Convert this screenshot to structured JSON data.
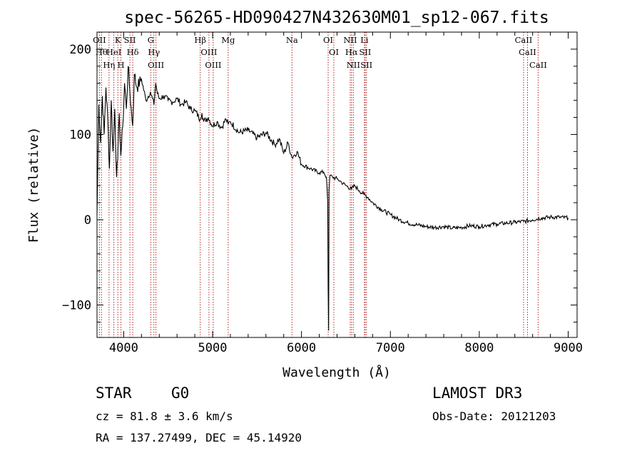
{
  "chart_data": {
    "type": "line",
    "title": "spec-56265-HD090427N432630M01_sp12-067.fits",
    "xlabel": "Wavelength (Å)",
    "ylabel": "Flux (relative)",
    "xlim": [
      3700,
      9100
    ],
    "ylim": [
      -138,
      220
    ],
    "xticks": [
      4000,
      5000,
      6000,
      7000,
      8000,
      9000
    ],
    "yticks": [
      -100,
      0,
      100,
      200
    ],
    "line_color": "#000000",
    "marker_color": "#b22222",
    "series": [
      {
        "name": "flux",
        "x": [
          3700,
          3720,
          3740,
          3760,
          3780,
          3800,
          3820,
          3840,
          3860,
          3880,
          3900,
          3920,
          3933,
          3950,
          3968,
          3990,
          4010,
          4030,
          4050,
          4070,
          4101,
          4120,
          4150,
          4200,
          4250,
          4300,
          4340,
          4360,
          4380,
          4400,
          4450,
          4500,
          4550,
          4600,
          4650,
          4700,
          4750,
          4800,
          4861,
          4880,
          4900,
          4950,
          5000,
          5050,
          5100,
          5150,
          5175,
          5200,
          5300,
          5400,
          5500,
          5600,
          5700,
          5750,
          5800,
          5850,
          5893,
          5950,
          6000,
          6100,
          6200,
          6250,
          6280,
          6295,
          6300,
          6305,
          6310,
          6320,
          6350,
          6400,
          6450,
          6500,
          6563,
          6600,
          6650,
          6700,
          6750,
          6800,
          6900,
          7000,
          7100,
          7200,
          7300,
          7400,
          7500,
          7600,
          7700,
          7800,
          7900,
          8000,
          8100,
          8200,
          8300,
          8400,
          8500,
          8600,
          8700,
          8800,
          8900,
          9000
        ],
        "y": [
          5,
          135,
          90,
          145,
          100,
          155,
          120,
          60,
          140,
          80,
          130,
          50,
          70,
          125,
          75,
          110,
          160,
          130,
          180,
          150,
          110,
          170,
          155,
          165,
          140,
          150,
          135,
          160,
          148,
          142,
          145,
          140,
          138,
          142,
          135,
          138,
          130,
          128,
          118,
          125,
          115,
          120,
          110,
          115,
          108,
          118,
          112,
          115,
          102,
          105,
          96,
          102,
          88,
          95,
          78,
          90,
          73,
          80,
          65,
          60,
          55,
          56,
          50,
          20,
          -80,
          -130,
          35,
          52,
          50,
          48,
          44,
          40,
          36,
          40,
          34,
          30,
          26,
          20,
          12,
          6,
          0,
          -4,
          -6,
          -8,
          -9,
          -8,
          -10,
          -9,
          -7,
          -8,
          -6,
          -5,
          -4,
          -3,
          -2,
          0,
          2,
          3,
          3,
          2
        ]
      }
    ],
    "lines": [
      {
        "name": "OII",
        "x": 3727
      },
      {
        "name": "Hθ",
        "x": 3750
      },
      {
        "name": "Hη",
        "x": 3835
      },
      {
        "name": "HeI",
        "x": 3889
      },
      {
        "name": "K",
        "x": 3934
      },
      {
        "name": "H",
        "x": 3969
      },
      {
        "name": "SII",
        "x": 4070
      },
      {
        "name": "Hδ",
        "x": 4102
      },
      {
        "name": "G",
        "x": 4305
      },
      {
        "name": "Hγ",
        "x": 4340
      },
      {
        "name": "OIII",
        "x": 4363
      },
      {
        "name": "Hβ",
        "x": 4861
      },
      {
        "name": "OIII",
        "x": 4959
      },
      {
        "name": "OIII",
        "x": 5007
      },
      {
        "name": "Mg",
        "x": 5175
      },
      {
        "name": "Na",
        "x": 5893
      },
      {
        "name": "OI",
        "x": 6300
      },
      {
        "name": "OI",
        "x": 6364
      },
      {
        "name": "NII",
        "x": 6548
      },
      {
        "name": "Hα",
        "x": 6563
      },
      {
        "name": "NII",
        "x": 6583
      },
      {
        "name": "Li",
        "x": 6708
      },
      {
        "name": "SII",
        "x": 6716
      },
      {
        "name": "SII",
        "x": 6731
      },
      {
        "name": "CaII",
        "x": 8498
      },
      {
        "name": "CaII",
        "x": 8542
      },
      {
        "name": "CaII",
        "x": 8662
      }
    ]
  },
  "info": {
    "obj_class": "STAR",
    "subclass": "G0",
    "survey": "LAMOST DR3",
    "cz": "cz = 81.8 ± 3.6 km/s",
    "obs_date": "Obs-Date: 20121203",
    "radec": "RA = 137.27499, DEC =  45.14920"
  }
}
